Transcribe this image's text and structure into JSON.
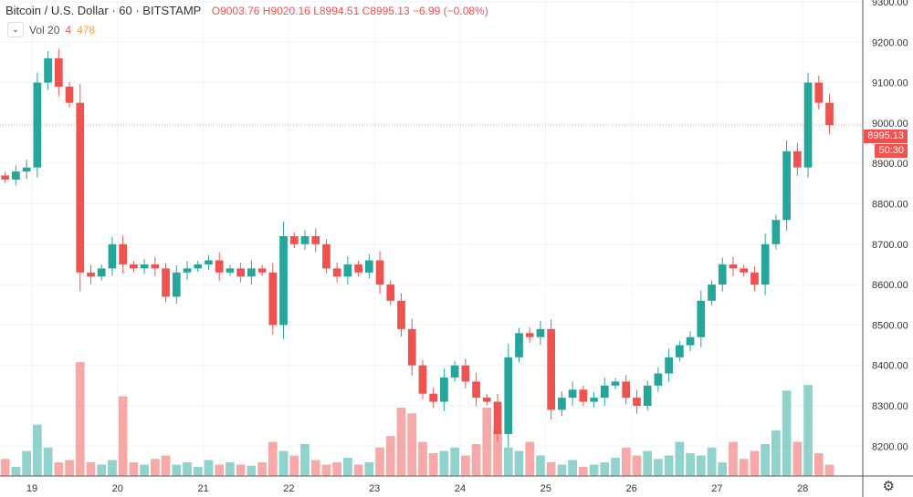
{
  "header": {
    "symbol": "Bitcoin / U.S. Dollar",
    "interval": "60",
    "exchange": "BITSTAMP",
    "open": "O9003.76",
    "high": "H9020.16",
    "low": "L8994.51",
    "close": "C8995.13",
    "change": "−6.99 (−0.08%)"
  },
  "volume_legend": {
    "label": "Vol 20",
    "value1": "4",
    "value2": "478"
  },
  "price_tag": {
    "price": "8995.13",
    "countdown": "50:30"
  },
  "colors": {
    "up": "#26a69a",
    "down": "#ef5350",
    "grid": "#f0f3fa"
  },
  "chart_data": {
    "type": "candlestick",
    "title": "Bitcoin / U.S. Dollar · 60 · BITSTAMP",
    "ylim": [
      8120,
      9300
    ],
    "y_ticks": [
      8200,
      8300,
      8400,
      8500,
      8600,
      8700,
      8800,
      8900,
      9000,
      9100,
      9200,
      9300
    ],
    "x_ticks": [
      "19",
      "20",
      "21",
      "22",
      "23",
      "24",
      "25",
      "26",
      "27",
      "28"
    ],
    "candle_hours": 3,
    "first_open": 8870,
    "closes": [
      8860,
      8880,
      8890,
      9100,
      9160,
      9090,
      9050,
      8630,
      8620,
      8640,
      8700,
      8650,
      8640,
      8650,
      8640,
      8570,
      8630,
      8640,
      8650,
      8660,
      8630,
      8640,
      8620,
      8640,
      8630,
      8500,
      8720,
      8700,
      8720,
      8700,
      8640,
      8620,
      8650,
      8630,
      8660,
      8600,
      8560,
      8490,
      8400,
      8330,
      8310,
      8370,
      8400,
      8360,
      8320,
      8310,
      8230,
      8420,
      8480,
      8470,
      8490,
      8290,
      8320,
      8340,
      8310,
      8320,
      8350,
      8360,
      8320,
      8300,
      8350,
      8380,
      8420,
      8450,
      8470,
      8560,
      8600,
      8650,
      8640,
      8630,
      8600,
      8700,
      8760,
      8930,
      8890,
      9100,
      9050,
      8995
    ],
    "volumes": [
      15,
      8,
      22,
      45,
      25,
      12,
      14,
      100,
      12,
      10,
      14,
      70,
      12,
      10,
      15,
      18,
      10,
      12,
      8,
      14,
      10,
      12,
      10,
      9,
      12,
      30,
      22,
      18,
      28,
      14,
      10,
      12,
      16,
      10,
      12,
      25,
      35,
      60,
      55,
      30,
      20,
      22,
      25,
      18,
      28,
      60,
      40,
      25,
      22,
      30,
      18,
      12,
      10,
      14,
      8,
      10,
      12,
      16,
      25,
      18,
      22,
      15,
      18,
      30,
      20,
      18,
      25,
      12,
      30,
      15,
      22,
      28,
      40,
      75,
      30,
      80,
      20,
      10
    ]
  }
}
